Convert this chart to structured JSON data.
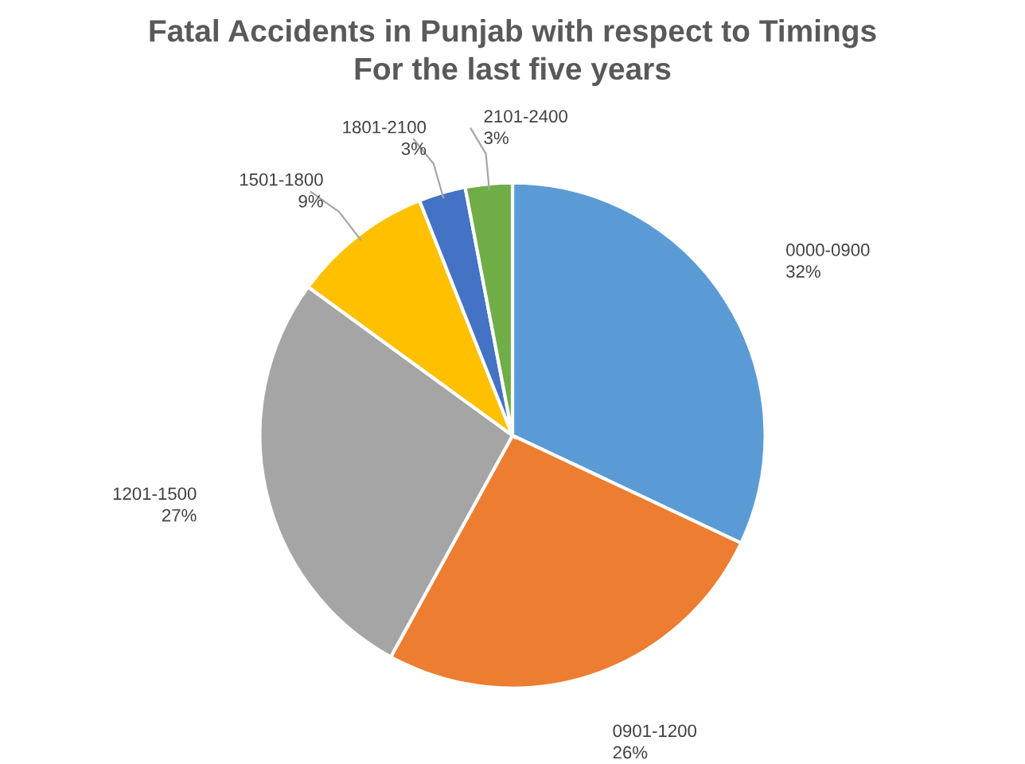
{
  "chart_data": {
    "type": "pie",
    "title": "Fatal Accidents in Punjab with respect to Timings\nFor the last five years",
    "categories": [
      "0000-0900",
      "0901-1200",
      "1201-1500",
      "1501-1800",
      "1801-2100",
      "2101-2400"
    ],
    "values": [
      32,
      26,
      27,
      9,
      3,
      3
    ],
    "colors": [
      "#5b9bd5",
      "#ed7d31",
      "#a5a5a5",
      "#ffc000",
      "#4472c4",
      "#70ad47"
    ],
    "value_labels": [
      "32%",
      "26%",
      "27%",
      "9%",
      "3%",
      "3%"
    ],
    "legend": false
  }
}
